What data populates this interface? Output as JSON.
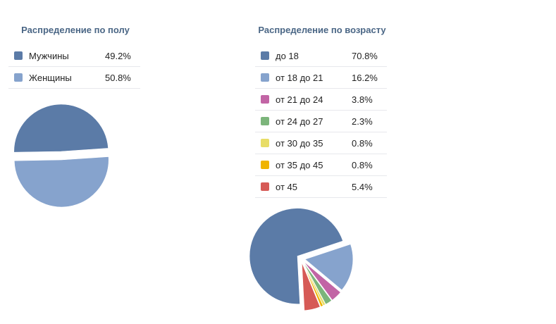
{
  "chart_data": [
    {
      "type": "pie",
      "title": "Распределение по полу",
      "slices": [
        {
          "label": "Мужчины",
          "value": 49.2,
          "display": "49.2%",
          "color": "#5b7ba7"
        },
        {
          "label": "Женщины",
          "value": 50.8,
          "display": "50.8%",
          "color": "#86a3cd"
        }
      ]
    },
    {
      "type": "pie",
      "title": "Распределение по возрасту",
      "slices": [
        {
          "label": "до 18",
          "value": 70.8,
          "display": "70.8%",
          "color": "#5b7ba7"
        },
        {
          "label": "от 18 до 21",
          "value": 16.2,
          "display": "16.2%",
          "color": "#86a3cd"
        },
        {
          "label": "от 21 до 24",
          "value": 3.8,
          "display": "3.8%",
          "color": "#c265a5"
        },
        {
          "label": "от 24 до 27",
          "value": 2.3,
          "display": "2.3%",
          "color": "#7cb57b"
        },
        {
          "label": "от 30 до 35",
          "value": 0.8,
          "display": "0.8%",
          "color": "#e8dd67"
        },
        {
          "label": "от 35 до 45",
          "value": 0.8,
          "display": "0.8%",
          "color": "#f0b400"
        },
        {
          "label": "от 45",
          "value": 5.4,
          "display": "5.4%",
          "color": "#d65a56"
        }
      ]
    }
  ]
}
